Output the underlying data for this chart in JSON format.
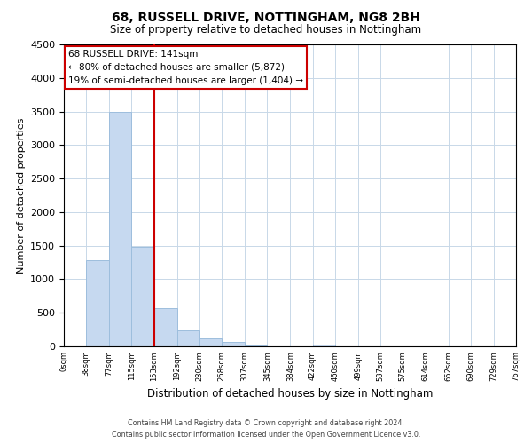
{
  "title": "68, RUSSELL DRIVE, NOTTINGHAM, NG8 2BH",
  "subtitle": "Size of property relative to detached houses in Nottingham",
  "xlabel": "Distribution of detached houses by size in Nottingham",
  "ylabel": "Number of detached properties",
  "bar_edges": [
    0,
    38,
    77,
    115,
    153,
    192,
    230,
    268,
    307,
    345,
    384,
    422,
    460,
    499,
    537,
    575,
    614,
    652,
    690,
    729,
    767
  ],
  "bar_heights": [
    0,
    1280,
    3500,
    1480,
    570,
    240,
    120,
    60,
    15,
    0,
    0,
    20,
    0,
    0,
    0,
    0,
    0,
    0,
    0,
    0
  ],
  "bar_color": "#c6d9f0",
  "bar_edge_color": "#9dbedd",
  "vline_x": 153,
  "vline_color": "#cc0000",
  "ylim": [
    0,
    4500
  ],
  "xlim": [
    0,
    767
  ],
  "annotation_title": "68 RUSSELL DRIVE: 141sqm",
  "annotation_line1": "← 80% of detached houses are smaller (5,872)",
  "annotation_line2": "19% of semi-detached houses are larger (1,404) →",
  "annotation_box_color": "#ffffff",
  "annotation_box_edge": "#cc0000",
  "tick_labels": [
    "0sqm",
    "38sqm",
    "77sqm",
    "115sqm",
    "153sqm",
    "192sqm",
    "230sqm",
    "268sqm",
    "307sqm",
    "345sqm",
    "384sqm",
    "422sqm",
    "460sqm",
    "499sqm",
    "537sqm",
    "575sqm",
    "614sqm",
    "652sqm",
    "690sqm",
    "729sqm",
    "767sqm"
  ],
  "tick_positions": [
    0,
    38,
    77,
    115,
    153,
    192,
    230,
    268,
    307,
    345,
    384,
    422,
    460,
    499,
    537,
    575,
    614,
    652,
    690,
    729,
    767
  ],
  "footer_line1": "Contains HM Land Registry data © Crown copyright and database right 2024.",
  "footer_line2": "Contains public sector information licensed under the Open Government Licence v3.0.",
  "bg_color": "#ffffff",
  "grid_color": "#c8d8e8"
}
